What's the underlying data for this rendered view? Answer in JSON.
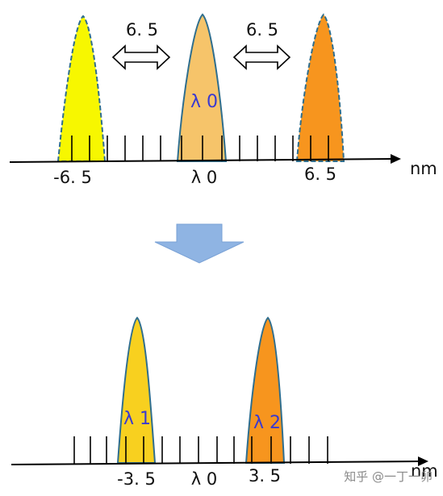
{
  "top_panel": {
    "gap_left": "6. 5",
    "gap_right": "6. 5",
    "center_peak_label": "λ 0",
    "tick_left": "-6. 5",
    "tick_center": "λ 0",
    "tick_right": "6. 5",
    "unit": "nm"
  },
  "bottom_panel": {
    "peak1_label": "λ 1",
    "peak2_label": "λ 2",
    "tick_left": "-3. 5",
    "tick_center": "λ 0",
    "tick_right": "3. 5",
    "unit": "nm"
  },
  "watermark": "知乎 @一丁一卯",
  "colors": {
    "yellow": "#f7f700",
    "light_orange": "#f6c46a",
    "orange": "#f7951e",
    "gold": "#f8d01f",
    "outline": "#2f6e8e",
    "arrow": "#8fb4e3"
  }
}
